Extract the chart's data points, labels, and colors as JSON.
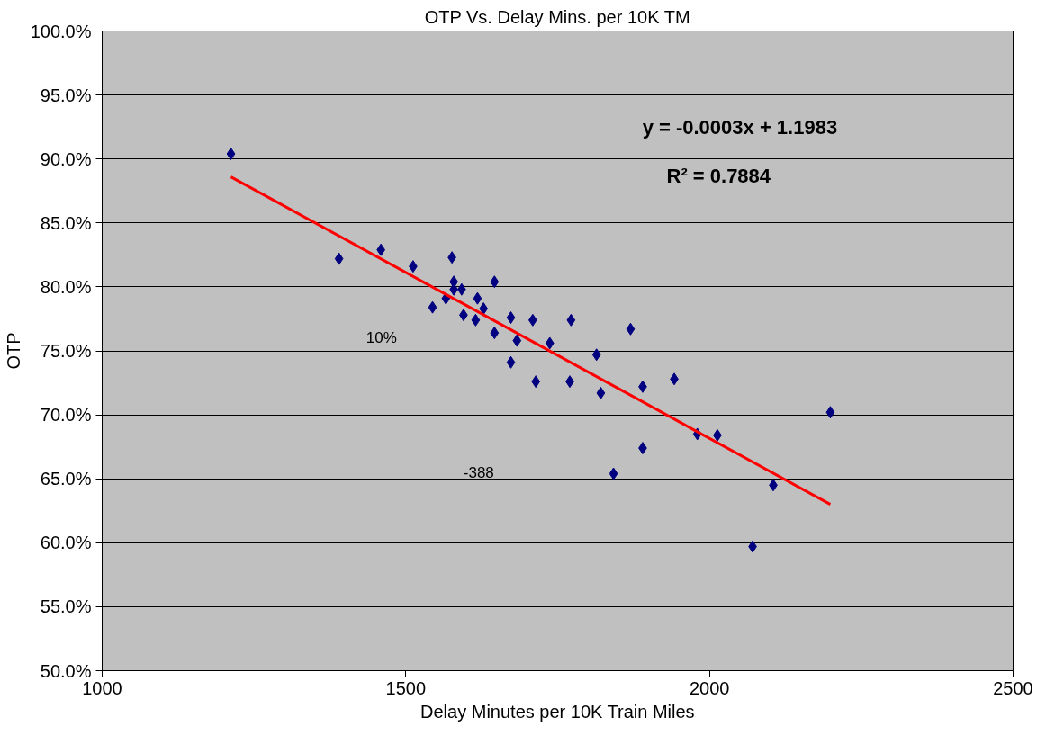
{
  "chart_data": {
    "type": "scatter",
    "title": "OTP Vs. Delay Mins. per 10K TM",
    "xlabel": "Delay Minutes per 10K Train Miles",
    "ylabel": "OTP",
    "grid": "y",
    "xlim": [
      1000,
      2500
    ],
    "xticks": [
      1000,
      1500,
      2000,
      2500
    ],
    "ylim": [
      50,
      100
    ],
    "yticks": [
      {
        "value": 50,
        "label": "50.0%"
      },
      {
        "value": 55,
        "label": "55.0%"
      },
      {
        "value": 60,
        "label": "60.0%"
      },
      {
        "value": 65,
        "label": "65.0%"
      },
      {
        "value": 70,
        "label": "70.0%"
      },
      {
        "value": 75,
        "label": "75.0%"
      },
      {
        "value": 80,
        "label": "80.0%"
      },
      {
        "value": 85,
        "label": "85.0%"
      },
      {
        "value": 90,
        "label": "90.0%"
      },
      {
        "value": 95,
        "label": "95.0%"
      },
      {
        "value": 100,
        "label": "100.0%"
      }
    ],
    "series": [
      {
        "marker": "diamond",
        "color": "#000080",
        "x": [
          1212,
          1390,
          1459,
          1512,
          1576,
          1544,
          1566,
          1579,
          1579,
          1592,
          1595,
          1618,
          1628,
          1615,
          1646,
          1646,
          1673,
          1673,
          1683,
          1709,
          1714,
          1737,
          1772,
          1770,
          1814,
          1821,
          1870,
          1890,
          1942,
          1890,
          1842,
          1980,
          2013,
          2071,
          2105,
          2199
        ],
        "values": [
          90.4,
          82.2,
          82.9,
          81.6,
          82.3,
          78.4,
          79.1,
          80.4,
          79.8,
          79.8,
          77.8,
          79.1,
          78.3,
          77.4,
          80.4,
          76.4,
          77.6,
          74.1,
          75.8,
          77.4,
          72.6,
          75.6,
          77.4,
          72.6,
          74.7,
          71.7,
          76.7,
          72.2,
          72.8,
          67.4,
          65.4,
          68.5,
          68.4,
          59.7,
          64.5,
          70.2
        ]
      },
      {
        "type": "line",
        "color": "#ff0000",
        "x": [
          1212,
          2199
        ],
        "values": [
          88.6,
          63.0
        ]
      }
    ],
    "annotations": [
      "y = -0.0003x + 1.1983",
      "R² = 0.7884",
      "10%",
      "-388"
    ]
  }
}
